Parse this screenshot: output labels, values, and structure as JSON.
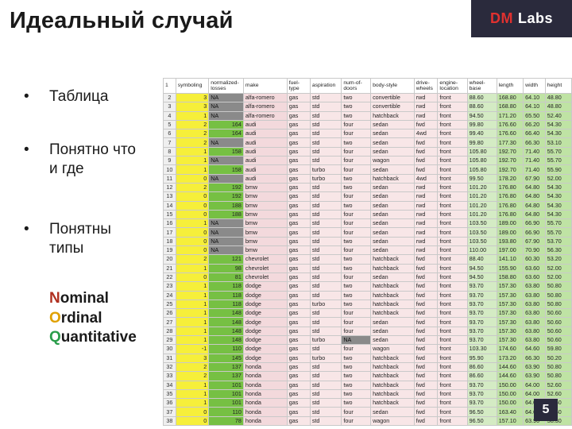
{
  "title": "Идеальный случай",
  "logo": {
    "dm": "DM",
    "labs": "Labs"
  },
  "bullets": [
    {
      "dot": "•",
      "text": "Таблица"
    },
    {
      "dot": "•",
      "text": "Понятно что и где"
    },
    {
      "dot": "•",
      "text": "Понятны типы"
    }
  ],
  "types": [
    {
      "first": "N",
      "rest": "ominal"
    },
    {
      "first": "O",
      "rest": "rdinal"
    },
    {
      "first": "Q",
      "rest": "uantitative"
    }
  ],
  "page_number": "5",
  "table": {
    "header_row_number": "1",
    "headers": [
      "symboling",
      "normalized-losses",
      "make",
      "fuel-type",
      "aspiration",
      "num-of-doors",
      "body-style",
      "drive-wheels",
      "engine-location",
      "wheel-base",
      "length",
      "width",
      "height"
    ],
    "rows": [
      [
        "2",
        "3",
        "NA",
        "alfa-romero",
        "gas",
        "std",
        "two",
        "convertible",
        "rwd",
        "front",
        "88.60",
        "168.80",
        "64.10",
        "48.80"
      ],
      [
        "3",
        "3",
        "NA",
        "alfa-romero",
        "gas",
        "std",
        "two",
        "convertible",
        "rwd",
        "front",
        "88.60",
        "168.80",
        "64.10",
        "48.80"
      ],
      [
        "4",
        "1",
        "NA",
        "alfa-romero",
        "gas",
        "std",
        "two",
        "hatchback",
        "rwd",
        "front",
        "94.50",
        "171.20",
        "65.50",
        "52.40"
      ],
      [
        "5",
        "2",
        "164",
        "audi",
        "gas",
        "std",
        "four",
        "sedan",
        "fwd",
        "front",
        "99.80",
        "176.60",
        "66.20",
        "54.30"
      ],
      [
        "6",
        "2",
        "164",
        "audi",
        "gas",
        "std",
        "four",
        "sedan",
        "4wd",
        "front",
        "99.40",
        "176.60",
        "66.40",
        "54.30"
      ],
      [
        "7",
        "2",
        "NA",
        "audi",
        "gas",
        "std",
        "two",
        "sedan",
        "fwd",
        "front",
        "99.80",
        "177.30",
        "66.30",
        "53.10"
      ],
      [
        "8",
        "1",
        "158",
        "audi",
        "gas",
        "std",
        "four",
        "sedan",
        "fwd",
        "front",
        "105.80",
        "192.70",
        "71.40",
        "55.70"
      ],
      [
        "9",
        "1",
        "NA",
        "audi",
        "gas",
        "std",
        "four",
        "wagon",
        "fwd",
        "front",
        "105.80",
        "192.70",
        "71.40",
        "55.70"
      ],
      [
        "10",
        "1",
        "158",
        "audi",
        "gas",
        "turbo",
        "four",
        "sedan",
        "fwd",
        "front",
        "105.80",
        "192.70",
        "71.40",
        "55.90"
      ],
      [
        "11",
        "0",
        "NA",
        "audi",
        "gas",
        "turbo",
        "two",
        "hatchback",
        "4wd",
        "front",
        "99.50",
        "178.20",
        "67.90",
        "52.00"
      ],
      [
        "12",
        "2",
        "192",
        "bmw",
        "gas",
        "std",
        "two",
        "sedan",
        "rwd",
        "front",
        "101.20",
        "176.80",
        "64.80",
        "54.30"
      ],
      [
        "13",
        "0",
        "192",
        "bmw",
        "gas",
        "std",
        "four",
        "sedan",
        "rwd",
        "front",
        "101.20",
        "176.80",
        "64.80",
        "54.30"
      ],
      [
        "14",
        "0",
        "188",
        "bmw",
        "gas",
        "std",
        "two",
        "sedan",
        "rwd",
        "front",
        "101.20",
        "176.80",
        "64.80",
        "54.30"
      ],
      [
        "15",
        "0",
        "188",
        "bmw",
        "gas",
        "std",
        "four",
        "sedan",
        "rwd",
        "front",
        "101.20",
        "176.80",
        "64.80",
        "54.30"
      ],
      [
        "16",
        "1",
        "NA",
        "bmw",
        "gas",
        "std",
        "four",
        "sedan",
        "rwd",
        "front",
        "103.50",
        "189.00",
        "66.90",
        "55.70"
      ],
      [
        "17",
        "0",
        "NA",
        "bmw",
        "gas",
        "std",
        "four",
        "sedan",
        "rwd",
        "front",
        "103.50",
        "189.00",
        "66.90",
        "55.70"
      ],
      [
        "18",
        "0",
        "NA",
        "bmw",
        "gas",
        "std",
        "two",
        "sedan",
        "rwd",
        "front",
        "103.50",
        "193.80",
        "67.90",
        "53.70"
      ],
      [
        "19",
        "0",
        "NA",
        "bmw",
        "gas",
        "std",
        "four",
        "sedan",
        "rwd",
        "front",
        "110.00",
        "197.00",
        "70.90",
        "56.30"
      ],
      [
        "20",
        "2",
        "121",
        "chevrolet",
        "gas",
        "std",
        "two",
        "hatchback",
        "fwd",
        "front",
        "88.40",
        "141.10",
        "60.30",
        "53.20"
      ],
      [
        "21",
        "1",
        "98",
        "chevrolet",
        "gas",
        "std",
        "two",
        "hatchback",
        "fwd",
        "front",
        "94.50",
        "155.90",
        "63.60",
        "52.00"
      ],
      [
        "22",
        "0",
        "81",
        "chevrolet",
        "gas",
        "std",
        "four",
        "sedan",
        "fwd",
        "front",
        "94.50",
        "158.80",
        "63.60",
        "52.00"
      ],
      [
        "23",
        "1",
        "118",
        "dodge",
        "gas",
        "std",
        "two",
        "hatchback",
        "fwd",
        "front",
        "93.70",
        "157.30",
        "63.80",
        "50.80"
      ],
      [
        "24",
        "1",
        "118",
        "dodge",
        "gas",
        "std",
        "two",
        "hatchback",
        "fwd",
        "front",
        "93.70",
        "157.30",
        "63.80",
        "50.80"
      ],
      [
        "25",
        "1",
        "118",
        "dodge",
        "gas",
        "turbo",
        "two",
        "hatchback",
        "fwd",
        "front",
        "93.70",
        "157.30",
        "63.80",
        "50.80"
      ],
      [
        "26",
        "1",
        "148",
        "dodge",
        "gas",
        "std",
        "four",
        "hatchback",
        "fwd",
        "front",
        "93.70",
        "157.30",
        "63.80",
        "50.60"
      ],
      [
        "27",
        "1",
        "148",
        "dodge",
        "gas",
        "std",
        "four",
        "sedan",
        "fwd",
        "front",
        "93.70",
        "157.30",
        "63.80",
        "50.60"
      ],
      [
        "28",
        "1",
        "148",
        "dodge",
        "gas",
        "std",
        "four",
        "sedan",
        "fwd",
        "front",
        "93.70",
        "157.30",
        "63.80",
        "50.60"
      ],
      [
        "29",
        "1",
        "148",
        "dodge",
        "gas",
        "turbo",
        "NA",
        "sedan",
        "fwd",
        "front",
        "93.70",
        "157.30",
        "63.80",
        "50.60"
      ],
      [
        "30",
        "-1",
        "110",
        "dodge",
        "gas",
        "std",
        "four",
        "wagon",
        "fwd",
        "front",
        "103.30",
        "174.60",
        "64.60",
        "59.80"
      ],
      [
        "31",
        "3",
        "145",
        "dodge",
        "gas",
        "turbo",
        "two",
        "hatchback",
        "fwd",
        "front",
        "95.90",
        "173.20",
        "66.30",
        "50.20"
      ],
      [
        "32",
        "2",
        "137",
        "honda",
        "gas",
        "std",
        "two",
        "hatchback",
        "fwd",
        "front",
        "86.60",
        "144.60",
        "63.90",
        "50.80"
      ],
      [
        "33",
        "2",
        "137",
        "honda",
        "gas",
        "std",
        "two",
        "hatchback",
        "fwd",
        "front",
        "86.60",
        "144.60",
        "63.90",
        "50.80"
      ],
      [
        "34",
        "1",
        "101",
        "honda",
        "gas",
        "std",
        "two",
        "hatchback",
        "fwd",
        "front",
        "93.70",
        "150.00",
        "64.00",
        "52.60"
      ],
      [
        "35",
        "1",
        "101",
        "honda",
        "gas",
        "std",
        "two",
        "hatchback",
        "fwd",
        "front",
        "93.70",
        "150.00",
        "64.00",
        "52.60"
      ],
      [
        "36",
        "1",
        "101",
        "honda",
        "gas",
        "std",
        "two",
        "hatchback",
        "fwd",
        "front",
        "93.70",
        "150.00",
        "64.00",
        "52.60"
      ],
      [
        "37",
        "0",
        "110",
        "honda",
        "gas",
        "std",
        "four",
        "sedan",
        "fwd",
        "front",
        "96.50",
        "163.40",
        "64.00",
        "54.50"
      ],
      [
        "38",
        "0",
        "78",
        "honda",
        "gas",
        "std",
        "four",
        "wagon",
        "fwd",
        "front",
        "96.50",
        "157.10",
        "63.90",
        "58.30"
      ]
    ]
  }
}
